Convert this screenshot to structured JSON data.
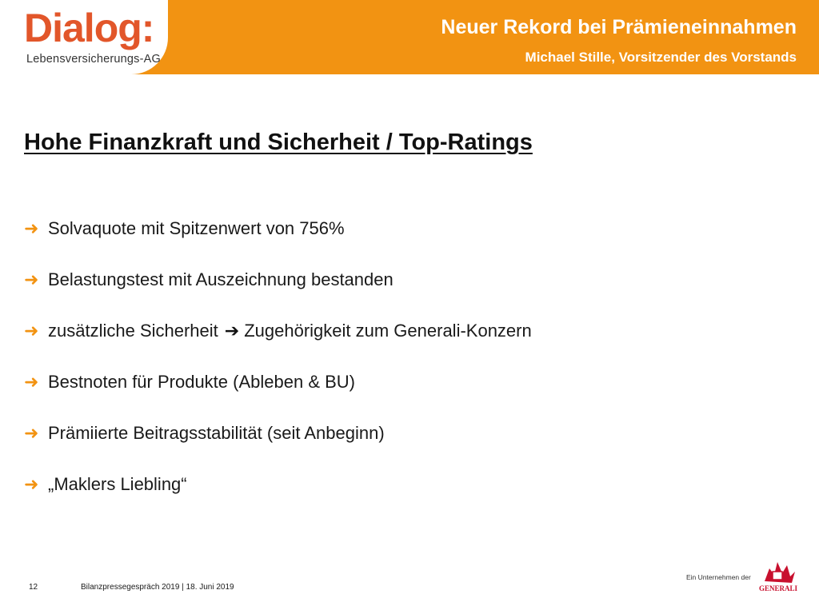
{
  "header": {
    "logo_word": "Dialog:",
    "logo_sub": "Lebensversicherungs-AG",
    "title": "Neuer Rekord bei Prämieneinnahmen",
    "subtitle": "Michael Stille, Vorsitzender des Vorstands",
    "accent_color": "#F29312",
    "logo_color": "#E2562A"
  },
  "slide": {
    "title": "Hohe Finanzkraft und Sicherheit / Top-Ratings",
    "bullet_icon": "arrow-right-icon",
    "bullets": [
      {
        "text": "Solvaquote mit Spitzenwert von 756%"
      },
      {
        "text": "Belastungstest mit Auszeichnung bestanden"
      },
      {
        "text_before": "zusätzliche Sicherheit",
        "text_after": "Zugehörigkeit zum Generali-Konzern"
      },
      {
        "text": "Bestnoten für Produkte (Ableben & BU)"
      },
      {
        "text": "Prämiierte Beitragsstabilität (seit Anbeginn)"
      },
      {
        "text": "„Maklers Liebling“"
      }
    ]
  },
  "footer": {
    "page_number": "12",
    "event": "Bilanzpressegespräch 2019  |  18. Juni 2019",
    "tagline": "Ein Unternehmen der",
    "brand": "GENERALI",
    "brand_color": "#C8102E"
  }
}
